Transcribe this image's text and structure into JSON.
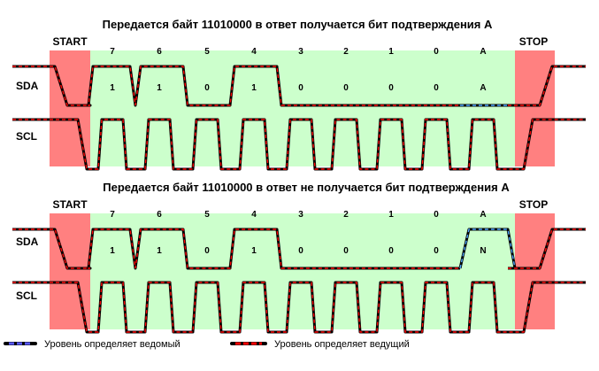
{
  "colors": {
    "start_stop_bg": "#ff8080",
    "data_bg": "#ccffcc",
    "line_base": "#000000",
    "master_dash": "#ff0000",
    "slave_dash": "#4da6ff",
    "slave_dot": "#5a5aff"
  },
  "signals": {
    "sda": "SDA",
    "scl": "SCL"
  },
  "phases": {
    "start": "START",
    "stop": "STOP"
  },
  "bit_numbers": [
    "7",
    "6",
    "5",
    "4",
    "3",
    "2",
    "1",
    "0",
    "A"
  ],
  "diagrams": [
    {
      "title": "Передается байт 11010000 в ответ получается бит подтверждения A",
      "bit_values": [
        "1",
        "1",
        "0",
        "1",
        "0",
        "0",
        "0",
        "0",
        "A"
      ],
      "bits": [
        1,
        1,
        0,
        1,
        0,
        0,
        0,
        0,
        0
      ]
    },
    {
      "title": "Передается байт 11010000 в ответ не получается бит подтверждения A",
      "bit_values": [
        "1",
        "1",
        "0",
        "1",
        "0",
        "0",
        "0",
        "0",
        "N"
      ],
      "bits": [
        1,
        1,
        0,
        1,
        0,
        0,
        0,
        0,
        1
      ]
    }
  ],
  "legend": {
    "slave": "Уровень определяет ведомый",
    "master": "Уровень определяет ведущий"
  }
}
